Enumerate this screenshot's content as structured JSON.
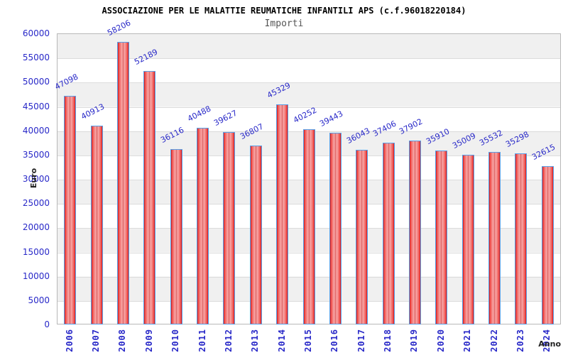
{
  "header": {
    "title": "ASSOCIAZIONE PER LE MALATTIE REUMATICHE INFANTILI APS (c.f.96018220184)",
    "subtitle": "Importi"
  },
  "chart_data": {
    "type": "bar",
    "title": "ASSOCIAZIONE PER LE MALATTIE REUMATICHE INFANTILI APS (c.f.96018220184)",
    "subtitle": "Importi",
    "categories": [
      "2006",
      "2007",
      "2008",
      "2009",
      "2010",
      "2011",
      "2012",
      "2013",
      "2014",
      "2015",
      "2016",
      "2017",
      "2018",
      "2019",
      "2020",
      "2021",
      "2022",
      "2023",
      "2024"
    ],
    "values": [
      47098,
      40913,
      58206,
      52189,
      36116,
      40488,
      39627,
      36807,
      45329,
      40252,
      39443,
      36043,
      37406,
      37902,
      35910,
      35009,
      35532,
      35298,
      32615
    ],
    "xlabel": "Anno",
    "ylabel": "Euro",
    "ylim": [
      0,
      60000
    ],
    "y_ticks": [
      0,
      5000,
      10000,
      15000,
      20000,
      25000,
      30000,
      35000,
      40000,
      45000,
      50000,
      55000,
      60000
    ],
    "grid": "horizontal-bands-alternating",
    "legend": "none",
    "bar_labels": "values shown rotated above each bar"
  },
  "colors": {
    "bar_fill_main": "#d41414",
    "bar_fill_highlight": "#f8a8a8",
    "bar_border": "#58a0e8",
    "axis_text": "#2828c8",
    "band_gray": "#f0f0f0",
    "gridline": "#dcdcdc",
    "plot_border": "#b8b8b8",
    "title_color": "#000000",
    "subtitle_color": "#555555",
    "axis_title_color": "#222222"
  }
}
